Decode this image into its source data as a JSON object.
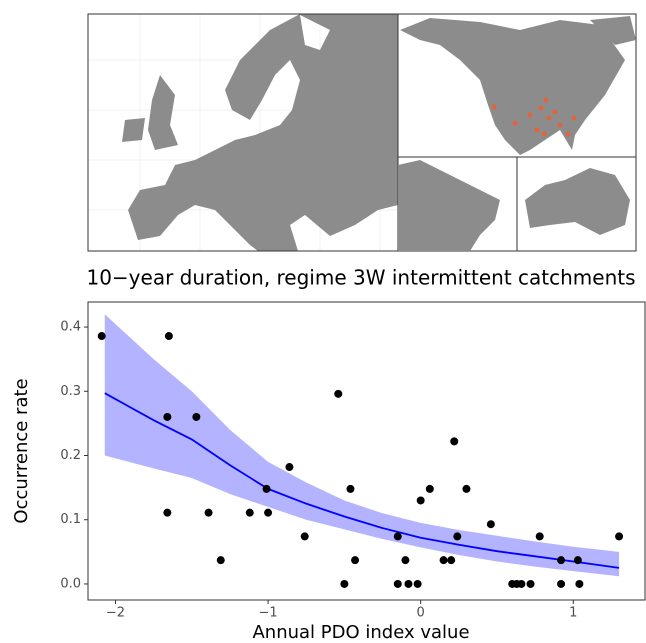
{
  "chart_data": {
    "type": "scatter",
    "title": "10−year duration, regime 3W intermittent catchments",
    "x_label": "Annual PDO index value",
    "y_label": "Occurrence rate",
    "xlim": [
      -2.18,
      1.47
    ],
    "ylim": [
      -0.025,
      0.439
    ],
    "xticks": [
      {
        "value": -2,
        "label": "−2"
      },
      {
        "value": -1,
        "label": "−1"
      },
      0,
      1
    ],
    "yticks": [
      {
        "value": 0,
        "label": "0.0"
      },
      0.1,
      0.2,
      0.3,
      0.4
    ],
    "grid": false,
    "points": {
      "color": "#000000",
      "x": [
        -2.09,
        -1.65,
        -1.66,
        -1.47,
        -1.66,
        -1.39,
        -1.31,
        -1.12,
        -1.01,
        -1.0,
        -0.86,
        -0.76,
        -0.54,
        -0.5,
        -0.46,
        -0.43,
        -0.15,
        -0.15,
        -0.1,
        -0.08,
        -0.02,
        0.06,
        0.0,
        0.15,
        0.2,
        0.22,
        0.24,
        0.3,
        0.46,
        0.6,
        0.63,
        0.66,
        0.72,
        0.78,
        0.92,
        0.92,
        1.03,
        1.04,
        1.3
      ],
      "values": [
        0.386,
        0.386,
        0.26,
        0.26,
        0.111,
        0.111,
        0.037,
        0.111,
        0.148,
        0.111,
        0.182,
        0.074,
        0.296,
        0,
        0.148,
        0.037,
        0.074,
        0,
        0.037,
        0,
        0,
        0.148,
        0.13,
        0.037,
        0.037,
        0.222,
        0.074,
        0.148,
        0.093,
        0,
        0,
        0,
        0,
        0.074,
        0.037,
        0,
        0.037,
        0,
        0.074
      ]
    },
    "fit": {
      "color": "#0000ff",
      "x": [
        -2.07,
        -1.75,
        -1.5,
        -1.25,
        -1.0,
        -0.75,
        -0.5,
        -0.25,
        0,
        0.25,
        0.5,
        0.75,
        1.0,
        1.3
      ],
      "values": [
        0.297,
        0.255,
        0.225,
        0.185,
        0.148,
        0.125,
        0.105,
        0.087,
        0.072,
        0.061,
        0.051,
        0.043,
        0.035,
        0.025
      ]
    },
    "band": {
      "color": "#b3b3ff",
      "x": [
        -2.07,
        -1.75,
        -1.5,
        -1.25,
        -1.0,
        -0.75,
        -0.5,
        -0.25,
        0,
        0.25,
        0.5,
        0.75,
        1.0,
        1.3
      ],
      "lower": [
        0.2,
        0.18,
        0.165,
        0.14,
        0.12,
        0.1,
        0.085,
        0.07,
        0.057,
        0.045,
        0.035,
        0.027,
        0.02,
        0.012
      ],
      "upper": [
        0.42,
        0.35,
        0.3,
        0.24,
        0.19,
        0.158,
        0.13,
        0.11,
        0.095,
        0.084,
        0.075,
        0.066,
        0.058,
        0.05
      ]
    }
  }
}
